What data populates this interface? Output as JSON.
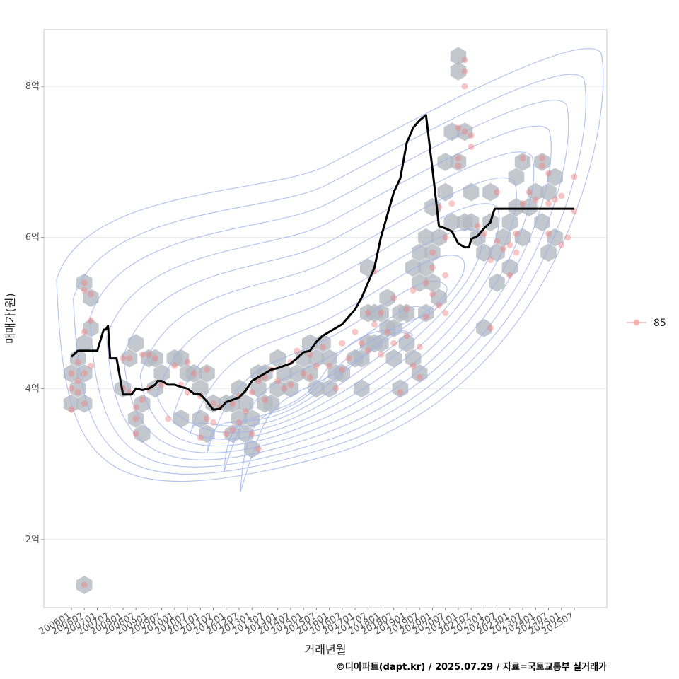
{
  "chart_data": {
    "type": "scatter",
    "xlabel": "거래년월",
    "ylabel": "매매가(원)",
    "y_unit": "억",
    "ylim": [
      1.1,
      8.75
    ],
    "yticks": [
      {
        "value": 2,
        "label": "2억"
      },
      {
        "value": 4,
        "label": "4억"
      },
      {
        "value": 6,
        "label": "6억"
      },
      {
        "value": 8,
        "label": "8억"
      }
    ],
    "xticks": [
      "200601",
      "200607",
      "200701",
      "200707",
      "200801",
      "200807",
      "200901",
      "200907",
      "201001",
      "201007",
      "201101",
      "201107",
      "201201",
      "201207",
      "201301",
      "201307",
      "201401",
      "201407",
      "201501",
      "201507",
      "201601",
      "201607",
      "201701",
      "201707",
      "201801",
      "201807",
      "201901",
      "201907",
      "202001",
      "202007",
      "202101",
      "202107",
      "202201",
      "202207",
      "202301",
      "202307",
      "202401",
      "202407",
      "202501",
      "202507"
    ],
    "grid": true,
    "legend": {
      "position": "right",
      "entries": [
        "85"
      ]
    },
    "colors": {
      "points": "#f08080",
      "hexbin": "#b4bac2",
      "contour": "#9eb2ea",
      "trend": "#000000"
    },
    "layers": [
      "hexbin",
      "density-contour",
      "scatter",
      "moving-average-line"
    ],
    "trend_series": {
      "x": [
        "200601",
        "200604",
        "200607",
        "200701",
        "200704",
        "200705",
        "200706",
        "200707",
        "200710",
        "200801",
        "200804",
        "200805",
        "200807",
        "200810",
        "200901",
        "200904",
        "200905",
        "200907",
        "200910",
        "201001",
        "201004",
        "201007",
        "201010",
        "201101",
        "201104",
        "201107",
        "201110",
        "201201",
        "201204",
        "201207",
        "201210",
        "201301",
        "201304",
        "201307",
        "201310",
        "201401",
        "201404",
        "201407",
        "201410",
        "201501",
        "201504",
        "201507",
        "201510",
        "201601",
        "201604",
        "201607",
        "201610",
        "201701",
        "201704",
        "201707",
        "201710",
        "201801",
        "201804",
        "201807",
        "201810",
        "201901",
        "201904",
        "201907",
        "201910",
        "202001",
        "202004",
        "202007",
        "202010",
        "202101",
        "202104",
        "202106",
        "202107",
        "202110",
        "202201",
        "202204",
        "202205",
        "202206",
        "202208",
        "202210",
        "202301",
        "202304",
        "202307",
        "202310",
        "202401",
        "202404",
        "202407",
        "202410",
        "202501",
        "202504",
        "202507"
      ],
      "y": [
        4.42,
        4.5,
        4.5,
        4.5,
        4.78,
        4.78,
        4.83,
        4.4,
        4.4,
        3.92,
        3.92,
        3.92,
        4.0,
        3.98,
        4.0,
        4.05,
        4.1,
        4.1,
        4.05,
        4.05,
        4.02,
        4.0,
        3.93,
        3.92,
        3.83,
        3.72,
        3.73,
        3.82,
        3.85,
        3.88,
        3.97,
        4.1,
        4.15,
        4.2,
        4.25,
        4.27,
        4.3,
        4.33,
        4.4,
        4.48,
        4.5,
        4.62,
        4.7,
        4.75,
        4.8,
        4.85,
        4.95,
        5.05,
        5.2,
        5.4,
        5.6,
        6.0,
        6.3,
        6.6,
        6.78,
        7.25,
        7.45,
        7.55,
        7.62,
        6.9,
        6.15,
        6.12,
        6.08,
        5.92,
        5.87,
        5.87,
        5.98,
        6.02,
        6.12,
        6.2,
        6.3,
        6.38,
        6.38,
        6.38,
        6.38,
        6.38,
        6.38,
        6.38,
        6.38,
        6.38,
        6.38,
        6.38,
        6.38,
        6.38,
        6.38
      ]
    },
    "scatter_points": [
      [
        "200601",
        4.2
      ],
      [
        "200601",
        4.0
      ],
      [
        "200601",
        3.72
      ],
      [
        "200604",
        4.35
      ],
      [
        "200604",
        4.1
      ],
      [
        "200604",
        3.95
      ],
      [
        "200607",
        5.4
      ],
      [
        "200607",
        5.3
      ],
      [
        "200607",
        4.75
      ],
      [
        "200607",
        4.2
      ],
      [
        "200607",
        3.8
      ],
      [
        "200610",
        5.25
      ],
      [
        "200610",
        4.9
      ],
      [
        "200610",
        4.3
      ],
      [
        "200607",
        1.4
      ],
      [
        "200801",
        4.0
      ],
      [
        "200801",
        4.4
      ],
      [
        "200804",
        4.4
      ],
      [
        "200804",
        3.95
      ],
      [
        "200807",
        3.6
      ],
      [
        "200807",
        3.4
      ],
      [
        "200807",
        3.75
      ],
      [
        "200810",
        4.45
      ],
      [
        "200810",
        3.85
      ],
      [
        "200901",
        4.0
      ],
      [
        "200901",
        4.45
      ],
      [
        "200904",
        4.4
      ],
      [
        "200907",
        4.05
      ],
      [
        "200910",
        3.6
      ],
      [
        "201001",
        4.3
      ],
      [
        "201004",
        4.05
      ],
      [
        "201007",
        3.95
      ],
      [
        "201007",
        4.35
      ],
      [
        "201010",
        4.2
      ],
      [
        "201101",
        3.9
      ],
      [
        "201101",
        3.35
      ],
      [
        "201104",
        4.25
      ],
      [
        "201104",
        3.6
      ],
      [
        "201107",
        3.55
      ],
      [
        "201107",
        3.8
      ],
      [
        "201110",
        3.75
      ],
      [
        "201201",
        3.4
      ],
      [
        "201204",
        3.45
      ],
      [
        "201204",
        3.8
      ],
      [
        "201207",
        3.9
      ],
      [
        "201207",
        3.55
      ],
      [
        "201210",
        3.7
      ],
      [
        "201301",
        3.4
      ],
      [
        "201301",
        3.95
      ],
      [
        "201304",
        3.2
      ],
      [
        "201304",
        4.1
      ],
      [
        "201307",
        3.85
      ],
      [
        "201307",
        4.15
      ],
      [
        "201310",
        4.25
      ],
      [
        "201401",
        4.1
      ],
      [
        "201404",
        4.0
      ],
      [
        "201407",
        4.35
      ],
      [
        "201407",
        4.05
      ],
      [
        "201410",
        4.5
      ],
      [
        "201501",
        4.2
      ],
      [
        "201504",
        4.45
      ],
      [
        "201504",
        4.15
      ],
      [
        "201507",
        4.3
      ],
      [
        "201510",
        4.55
      ],
      [
        "201601",
        4.3
      ],
      [
        "201604",
        4.0
      ],
      [
        "201607",
        4.25
      ],
      [
        "201607",
        4.6
      ],
      [
        "201610",
        4.4
      ],
      [
        "201701",
        4.75
      ],
      [
        "201704",
        4.6
      ],
      [
        "201707",
        5.0
      ],
      [
        "201707",
        4.5
      ],
      [
        "201710",
        5.55
      ],
      [
        "201710",
        4.85
      ],
      [
        "201801",
        5.0
      ],
      [
        "201801",
        4.45
      ],
      [
        "201804",
        4.75
      ],
      [
        "201807",
        5.2
      ],
      [
        "201807",
        4.6
      ],
      [
        "201810",
        3.95
      ],
      [
        "201901",
        4.7
      ],
      [
        "201901",
        5.05
      ],
      [
        "201904",
        4.3
      ],
      [
        "201904",
        5.3
      ],
      [
        "201907",
        4.55
      ],
      [
        "201907",
        4.15
      ],
      [
        "201910",
        4.95
      ],
      [
        "201910",
        5.4
      ],
      [
        "202001",
        5.8
      ],
      [
        "202001",
        5.6
      ],
      [
        "202001",
        5.25
      ],
      [
        "202004",
        5.1
      ],
      [
        "202004",
        6.4
      ],
      [
        "202007",
        6.0
      ],
      [
        "202007",
        5.5
      ],
      [
        "202007",
        5.0
      ],
      [
        "202010",
        6.45
      ],
      [
        "202101",
        7.05
      ],
      [
        "202101",
        7.45
      ],
      [
        "202101",
        6.95
      ],
      [
        "202104",
        7.4
      ],
      [
        "202104",
        8.35
      ],
      [
        "202104",
        8.2
      ],
      [
        "202104",
        8.0
      ],
      [
        "202107",
        7.35
      ],
      [
        "202107",
        7.2
      ],
      [
        "202110",
        6.15
      ],
      [
        "202201",
        6.05
      ],
      [
        "202204",
        5.7
      ],
      [
        "202204",
        4.8
      ],
      [
        "202207",
        6.6
      ],
      [
        "202207",
        5.95
      ],
      [
        "202210",
        5.85
      ],
      [
        "202301",
        5.5
      ],
      [
        "202301",
        5.9
      ],
      [
        "202304",
        6.05
      ],
      [
        "202304",
        5.8
      ],
      [
        "202307",
        6.45
      ],
      [
        "202307",
        7.05
      ],
      [
        "202310",
        6.6
      ],
      [
        "202401",
        6.5
      ],
      [
        "202404",
        7.05
      ],
      [
        "202404",
        6.95
      ],
      [
        "202407",
        6.45
      ],
      [
        "202407",
        6.85
      ],
      [
        "202407",
        6.05
      ],
      [
        "202410",
        6.5
      ],
      [
        "202501",
        6.55
      ],
      [
        "202501",
        5.9
      ],
      [
        "202504",
        6.0
      ],
      [
        "202507",
        6.8
      ],
      [
        "202507",
        6.35
      ]
    ],
    "hexbins": [
      [
        "200601",
        4.2
      ],
      [
        "200601",
        3.8
      ],
      [
        "200604",
        4.4
      ],
      [
        "200604",
        4.0
      ],
      [
        "200607",
        5.4
      ],
      [
        "200607",
        4.6
      ],
      [
        "200607",
        4.2
      ],
      [
        "200607",
        3.8
      ],
      [
        "200607",
        1.4
      ],
      [
        "200610",
        4.8
      ],
      [
        "200610",
        5.2
      ],
      [
        "200801",
        4.0
      ],
      [
        "200804",
        4.4
      ],
      [
        "200807",
        4.6
      ],
      [
        "200807",
        3.6
      ],
      [
        "200810",
        3.8
      ],
      [
        "200810",
        3.4
      ],
      [
        "200901",
        4.4
      ],
      [
        "200904",
        4.4
      ],
      [
        "200904",
        4.0
      ],
      [
        "200907",
        4.2
      ],
      [
        "201001",
        4.4
      ],
      [
        "201004",
        4.4
      ],
      [
        "201004",
        3.6
      ],
      [
        "201007",
        4.2
      ],
      [
        "201010",
        4.2
      ],
      [
        "201101",
        4.0
      ],
      [
        "201101",
        3.6
      ],
      [
        "201104",
        4.2
      ],
      [
        "201104",
        3.4
      ],
      [
        "201107",
        3.8
      ],
      [
        "201201",
        3.8
      ],
      [
        "201204",
        3.4
      ],
      [
        "201204",
        3.8
      ],
      [
        "201207",
        3.6
      ],
      [
        "201207",
        4.0
      ],
      [
        "201210",
        3.4
      ],
      [
        "201210",
        3.8
      ],
      [
        "201301",
        3.6
      ],
      [
        "201301",
        3.2
      ],
      [
        "201304",
        4.0
      ],
      [
        "201304",
        4.2
      ],
      [
        "201307",
        3.8
      ],
      [
        "201307",
        4.2
      ],
      [
        "201310",
        3.8
      ],
      [
        "201401",
        4.4
      ],
      [
        "201401",
        4.0
      ],
      [
        "201404",
        4.2
      ],
      [
        "201407",
        4.0
      ],
      [
        "201410",
        4.2
      ],
      [
        "201501",
        4.4
      ],
      [
        "201504",
        4.6
      ],
      [
        "201504",
        4.2
      ],
      [
        "201507",
        4.4
      ],
      [
        "201507",
        4.0
      ],
      [
        "201510",
        4.6
      ],
      [
        "201601",
        4.4
      ],
      [
        "201601",
        4.0
      ],
      [
        "201604",
        4.2
      ],
      [
        "201607",
        4.2
      ],
      [
        "201701",
        4.4
      ],
      [
        "201704",
        4.4
      ],
      [
        "201704",
        4.0
      ],
      [
        "201707",
        5.6
      ],
      [
        "201707",
        5.0
      ],
      [
        "201707",
        4.6
      ],
      [
        "201710",
        5.0
      ],
      [
        "201710",
        4.6
      ],
      [
        "201801",
        5.0
      ],
      [
        "201801",
        4.6
      ],
      [
        "201804",
        5.2
      ],
      [
        "201804",
        4.8
      ],
      [
        "201807",
        4.8
      ],
      [
        "201807",
        4.4
      ],
      [
        "201810",
        5.0
      ],
      [
        "201810",
        4.0
      ],
      [
        "201901",
        5.0
      ],
      [
        "201901",
        4.6
      ],
      [
        "201904",
        5.6
      ],
      [
        "201904",
        4.4
      ],
      [
        "201907",
        5.8
      ],
      [
        "201907",
        5.4
      ],
      [
        "201907",
        4.2
      ],
      [
        "201910",
        6.0
      ],
      [
        "201910",
        5.6
      ],
      [
        "201910",
        5.0
      ],
      [
        "202001",
        6.4
      ],
      [
        "202001",
        5.8
      ],
      [
        "202001",
        5.4
      ],
      [
        "202004",
        6.0
      ],
      [
        "202004",
        5.2
      ],
      [
        "202007",
        7.0
      ],
      [
        "202007",
        6.6
      ],
      [
        "202010",
        7.4
      ],
      [
        "202010",
        6.2
      ],
      [
        "202101",
        8.4
      ],
      [
        "202101",
        8.2
      ],
      [
        "202101",
        7.0
      ],
      [
        "202104",
        7.4
      ],
      [
        "202104",
        6.2
      ],
      [
        "202107",
        6.2
      ],
      [
        "202107",
        6.6
      ],
      [
        "202110",
        6.0
      ],
      [
        "202201",
        5.8
      ],
      [
        "202201",
        4.8
      ],
      [
        "202204",
        6.6
      ],
      [
        "202204",
        6.2
      ],
      [
        "202207",
        5.8
      ],
      [
        "202207",
        5.4
      ],
      [
        "202210",
        6.0
      ],
      [
        "202301",
        5.6
      ],
      [
        "202301",
        6.2
      ],
      [
        "202304",
        6.8
      ],
      [
        "202304",
        6.4
      ],
      [
        "202307",
        7.0
      ],
      [
        "202307",
        6.0
      ],
      [
        "202310",
        6.4
      ],
      [
        "202401",
        6.6
      ],
      [
        "202404",
        6.2
      ],
      [
        "202404",
        7.0
      ],
      [
        "202407",
        6.6
      ],
      [
        "202407",
        5.8
      ],
      [
        "202410",
        6.8
      ],
      [
        "202410",
        6.0
      ]
    ]
  },
  "caption": "©디아파트(dapt.kr) / 2025.07.29 / 자료=국토교통부 실거래가"
}
